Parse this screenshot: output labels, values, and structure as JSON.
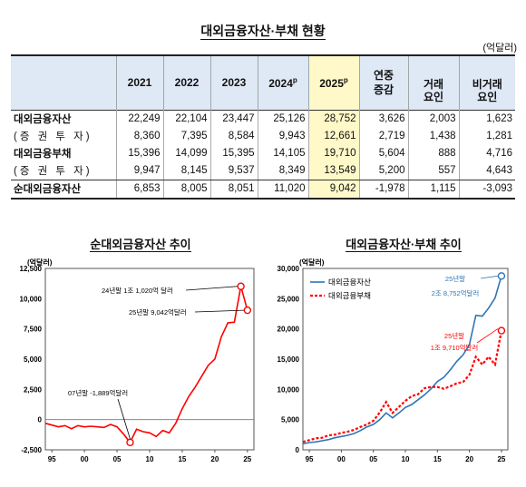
{
  "table": {
    "title": "대외금융자산·부채 현황",
    "unit": "(억달러)",
    "headers": [
      "2021",
      "2022",
      "2023",
      "2024",
      "2025",
      "연중\n증감",
      "거래\n요인",
      "비거래\n요인"
    ],
    "prelim_mark": "p",
    "rows": [
      {
        "label": "대외금융자산",
        "values": [
          "22,249",
          "22,104",
          "23,447",
          "25,126",
          "28,752",
          "3,626",
          "2,003",
          "1,623"
        ]
      },
      {
        "label": "(증 권 투 자)",
        "values": [
          "8,360",
          "7,395",
          "8,584",
          "9,943",
          "12,661",
          "2,719",
          "1,438",
          "1,281"
        ]
      },
      {
        "label": "대외금융부채",
        "values": [
          "15,396",
          "14,099",
          "15,395",
          "14,105",
          "19,710",
          "5,604",
          "888",
          "4,716"
        ]
      },
      {
        "label": "(증 권 투 자)",
        "values": [
          "9,947",
          "8,145",
          "9,537",
          "8,349",
          "13,549",
          "5,200",
          "557",
          "4,643"
        ]
      },
      {
        "label": "순대외금융자산",
        "values": [
          "6,853",
          "8,005",
          "8,051",
          "11,020",
          "9,042",
          "-1,978",
          "1,115",
          "-3,093"
        ]
      }
    ]
  },
  "left_chart": {
    "title": "순대외금융자산 추이",
    "unit": "(억달러)",
    "annotations": [
      "24년말 1조 1,020억 달러",
      "25년말 9,042억달러",
      "07년말 -1,889억달러"
    ]
  },
  "right_chart": {
    "title": "대외금융자산·부채 추이",
    "unit": "(억달러)",
    "annotations": [
      "25년말",
      "2조 8,752억달러",
      "25년말",
      "1조 9,710억달러"
    ]
  },
  "chart_data": [
    {
      "type": "line",
      "title": "순대외금융자산 추이",
      "ylabel": "(억달러)",
      "ylim": [
        -2500,
        12500
      ],
      "yticks": [
        "-2,500",
        "0",
        "2,500",
        "5,000",
        "7,500",
        "10,000",
        "12,500"
      ],
      "xticks": [
        "95",
        "00",
        "05",
        "10",
        "15",
        "20",
        "25"
      ],
      "x": [
        1994,
        1995,
        1996,
        1997,
        1998,
        1999,
        2000,
        2001,
        2002,
        2003,
        2004,
        2005,
        2006,
        2007,
        2008,
        2009,
        2010,
        2011,
        2012,
        2013,
        2014,
        2015,
        2016,
        2017,
        2018,
        2019,
        2020,
        2021,
        2022,
        2023,
        2024,
        2025
      ],
      "series": [
        {
          "color": "#ff0000",
          "values": [
            -300,
            -450,
            -600,
            -500,
            -750,
            -500,
            -600,
            -550,
            -600,
            -650,
            -400,
            -600,
            -1200,
            -1889,
            -800,
            -1000,
            -1100,
            -1400,
            -900,
            -1100,
            -300,
            900,
            1900,
            2700,
            3600,
            4500,
            5000,
            6853,
            8005,
            8051,
            11020,
            9042
          ]
        }
      ]
    },
    {
      "type": "line",
      "ylabel": "(억달러)",
      "ylim": [
        0,
        30000
      ],
      "yticks": [
        "0",
        "5,000",
        "10,000",
        "15,000",
        "20,000",
        "25,000",
        "30,000"
      ],
      "xticks": [
        "95",
        "00",
        "05",
        "10",
        "15",
        "20",
        "25"
      ],
      "x": [
        1994,
        1995,
        1996,
        1997,
        1998,
        1999,
        2000,
        2001,
        2002,
        2003,
        2004,
        2005,
        2006,
        2007,
        2008,
        2009,
        2010,
        2011,
        2012,
        2013,
        2014,
        2015,
        2016,
        2017,
        2018,
        2019,
        2020,
        2021,
        2022,
        2023,
        2024,
        2025
      ],
      "series": [
        {
          "name": "대외금융자산",
          "color": "#2e75b6",
          "dash": false,
          "values": [
            1000,
            1200,
            1300,
            1500,
            1700,
            2000,
            2200,
            2400,
            2700,
            3200,
            3800,
            4200,
            5000,
            6100,
            5300,
            6100,
            7000,
            7500,
            8300,
            9100,
            10100,
            11300,
            12000,
            13200,
            14600,
            15700,
            17400,
            22249,
            22104,
            23447,
            25126,
            28752
          ]
        },
        {
          "name": "대외금융부채",
          "color": "#ff0000",
          "dash": true,
          "values": [
            1300,
            1600,
            1900,
            2000,
            2400,
            2500,
            2800,
            3000,
            3300,
            3800,
            4200,
            4800,
            6200,
            7900,
            6100,
            7100,
            8100,
            8900,
            9200,
            10200,
            10400,
            10400,
            10100,
            10500,
            11000,
            11200,
            12400,
            15396,
            14099,
            15395,
            14105,
            19710
          ]
        }
      ]
    }
  ]
}
